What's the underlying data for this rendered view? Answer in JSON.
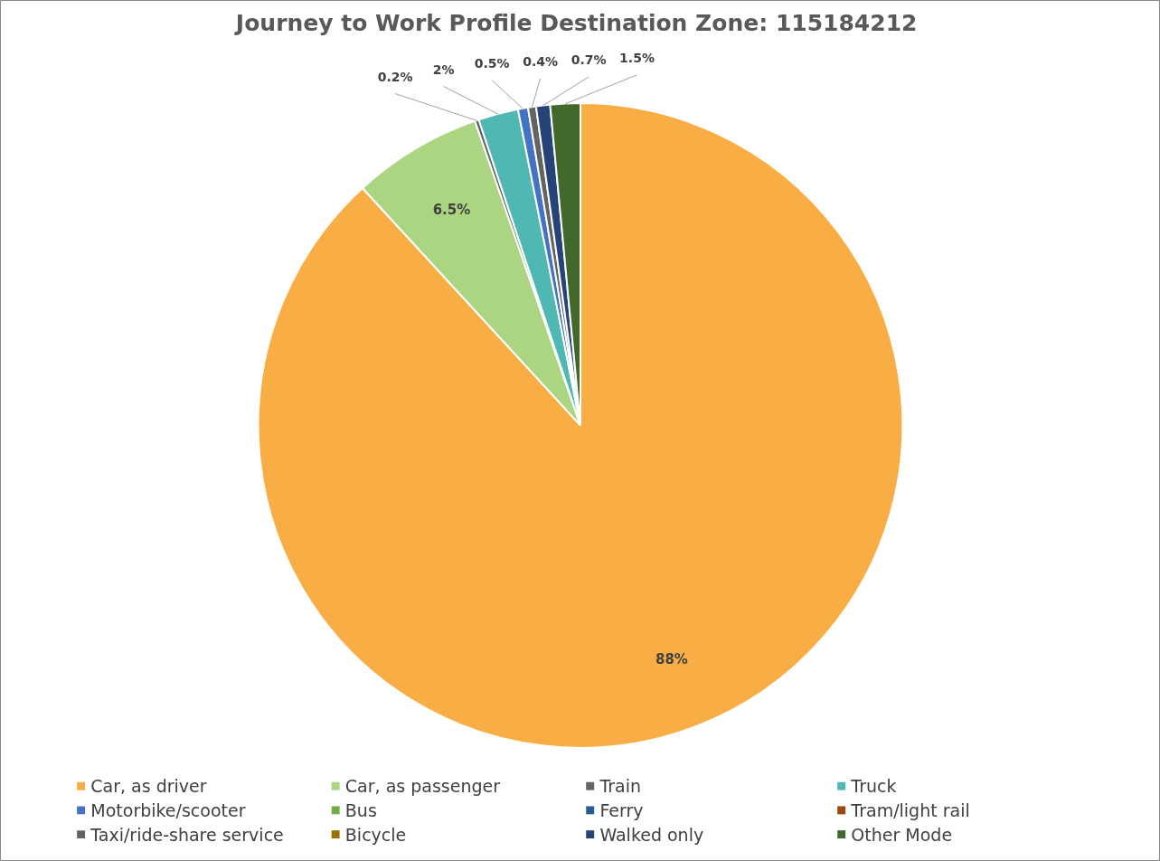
{
  "chart_data": {
    "type": "pie",
    "title": "Journey to Work Profile Destination Zone:  115184212",
    "categories": [
      "Car, as driver",
      "Car, as passenger",
      "Train",
      "Truck",
      "Motorbike/scooter",
      "Bus",
      "Ferry",
      "Tram/light rail",
      "Taxi/ride-share service",
      "Bicycle",
      "Walked only",
      "Other Mode"
    ],
    "values": [
      88,
      6.5,
      0.2,
      2,
      0.5,
      0,
      0,
      0,
      0.4,
      0,
      0.7,
      1.5
    ],
    "colors": [
      "#f9ae45",
      "#acd582",
      "#636363",
      "#50b8b2",
      "#4472c4",
      "#70ad47",
      "#255e91",
      "#9e480e",
      "#636363",
      "#997300",
      "#264478",
      "#43682b"
    ],
    "value_labels": [
      "88%",
      "6.5%",
      "0.2%",
      "2%",
      "0.5%",
      null,
      null,
      null,
      "0.4%",
      null,
      "0.7%",
      "1.5%"
    ],
    "legend": "bottom"
  }
}
